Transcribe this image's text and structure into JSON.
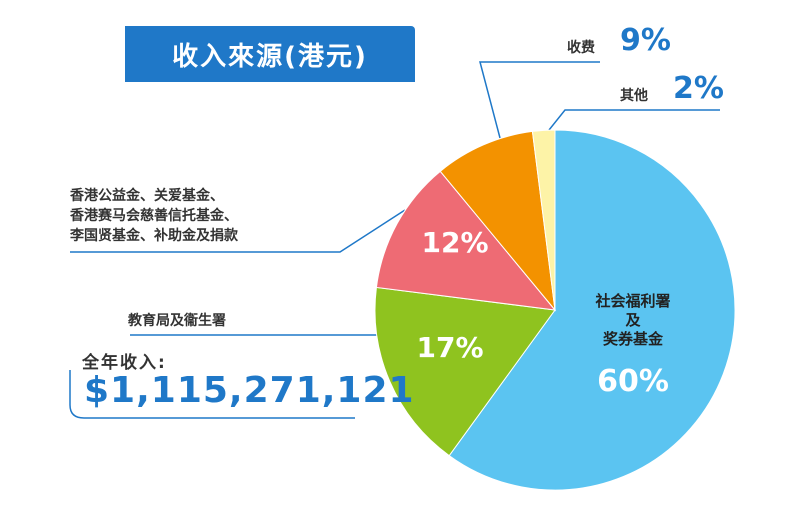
{
  "title": "收入來源(港元)",
  "total": {
    "label": "全年收入:",
    "value": "$1,115,271,121"
  },
  "labels": {
    "fees": {
      "name": "收费",
      "pct": "9%"
    },
    "others": {
      "name": "其他",
      "pct": "2%"
    },
    "donations": {
      "lines": [
        "香港公益金、关爱基金、",
        "香港赛马会慈善信托基金、",
        "李国贤基金、补助金及捐款"
      ]
    },
    "edu": {
      "name": "教育局及衞生署"
    },
    "swd": {
      "lines": [
        "社会福利署",
        "及",
        "奖券基金"
      ],
      "pct": "60%"
    }
  },
  "colors": {
    "title_bg": "#1f78c8",
    "swd": "#5bc4f1",
    "edu": "#8fc31f",
    "donations": "#ee6b74",
    "fees": "#f39200",
    "others": "#fdf3a7",
    "accent_text": "#1f78c8",
    "leader_line": "#1f78c8"
  },
  "chart_data": {
    "type": "pie",
    "title": "收入來源(港元)",
    "slices": [
      {
        "name": "社会福利署及奖券基金",
        "value": 60,
        "label": "60%"
      },
      {
        "name": "教育局及衞生署",
        "value": 17,
        "label": "17%"
      },
      {
        "name": "香港公益金、关爱基金、香港赛马会慈善信托基金、李国贤基金、补助金及捐款",
        "value": 12,
        "label": "12%"
      },
      {
        "name": "收费",
        "value": 9,
        "label": "9%"
      },
      {
        "name": "其他",
        "value": 2,
        "label": "2%"
      }
    ]
  }
}
